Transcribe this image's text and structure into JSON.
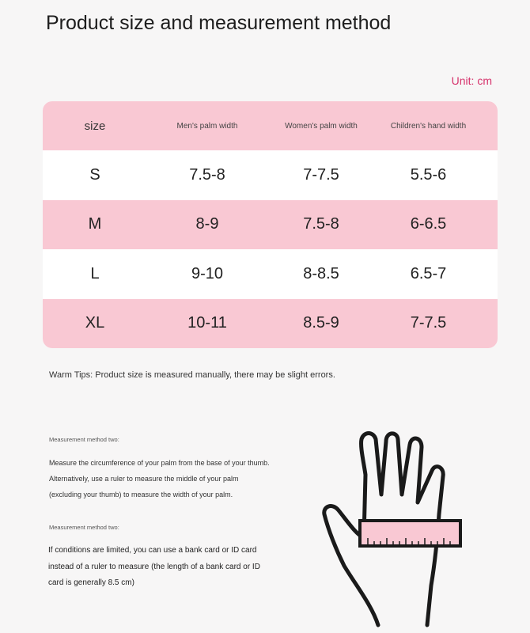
{
  "title": "Product size and measurement method",
  "unit": "Unit: cm",
  "table": {
    "headers": [
      "size",
      "Men's palm width",
      "Women's palm width",
      "Children's hand width"
    ],
    "rows": [
      [
        "S",
        "7.5-8",
        "7-7.5",
        "5.5-6"
      ],
      [
        "M",
        "8-9",
        "7.5-8",
        "6-6.5"
      ],
      [
        "L",
        "9-10",
        "8-8.5",
        "6.5-7"
      ],
      [
        "XL",
        "10-11",
        "8.5-9",
        "7-7.5"
      ]
    ],
    "colors": {
      "pink": "#f9c8d3",
      "white": "#ffffff"
    }
  },
  "tips": "Warm Tips: Product size is measured manually, there may be slight errors.",
  "methods": [
    {
      "label": "Measurement method two:",
      "text": "Measure the circumference of your palm from the base of your thumb. Alternatively, use a ruler to measure the middle of your palm (excluding your thumb) to measure the width of your palm."
    },
    {
      "label": "Measurement method two:",
      "text": "If conditions are limited, you can use a bank card or ID card instead of a ruler to measure (the length of a bank card or ID card is generally 8.5 cm)"
    }
  ],
  "illustration": "hand-with-ruler-icon"
}
